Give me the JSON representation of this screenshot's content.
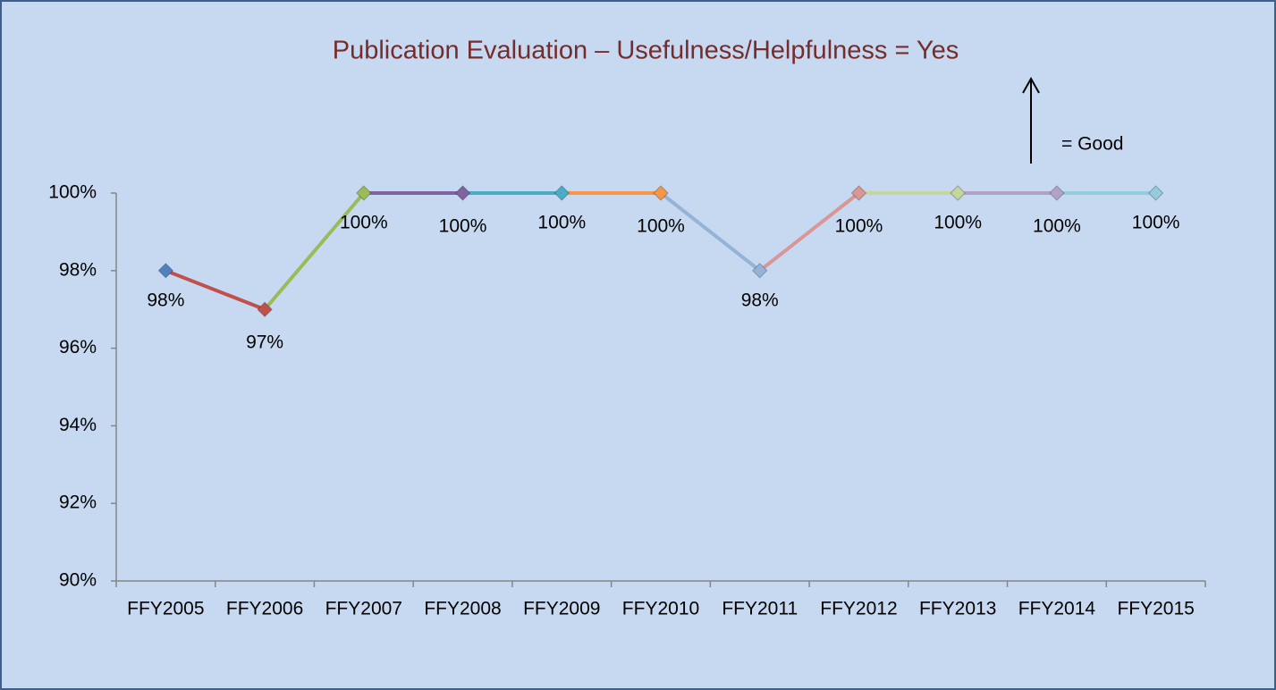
{
  "chart_data": {
    "type": "line",
    "title": "Publication Evaluation – Usefulness/Helpfulness = Yes",
    "annotation": "=  Good",
    "categories": [
      "FFY2005",
      "FFY2006",
      "FFY2007",
      "FFY2008",
      "FFY2009",
      "FFY2010",
      "FFY2011",
      "FFY2012",
      "FFY2013",
      "FFY2014",
      "FFY2015"
    ],
    "values": [
      98,
      97,
      100,
      100,
      100,
      100,
      98,
      100,
      100,
      100,
      100
    ],
    "value_labels": [
      "98%",
      "97%",
      "100%",
      "100%",
      "100%",
      "100%",
      "98%",
      "100%",
      "100%",
      "100%",
      "100%"
    ],
    "colors": [
      "#4f81bd",
      "#c0504d",
      "#9bbb59",
      "#8064a2",
      "#4bacc6",
      "#f79646",
      "#95b3d7",
      "#d99694",
      "#c3d69b",
      "#b3a2c7",
      "#93cddd"
    ],
    "ylim": [
      90,
      100
    ],
    "yticks": [
      {
        "value": 90,
        "label": "90%"
      },
      {
        "value": 92,
        "label": "92%"
      },
      {
        "value": 94,
        "label": "94%"
      },
      {
        "value": 96,
        "label": "96%"
      },
      {
        "value": 98,
        "label": "98%"
      },
      {
        "value": 100,
        "label": "100%"
      }
    ],
    "grid": false
  }
}
